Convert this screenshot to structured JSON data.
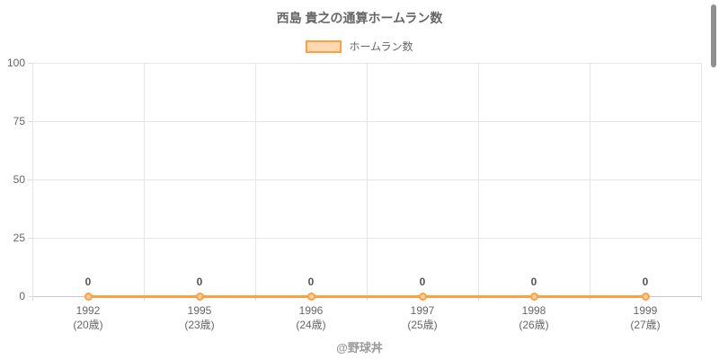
{
  "chart": {
    "title": "西島 貴之の通算ホームラン数",
    "legend": {
      "label": "ホームラン数"
    },
    "footer": "@野球丼",
    "colors": {
      "line": "#ff9f40",
      "point_fill": "#ffcf9f",
      "legend_fill": "#ffd9b2",
      "grid": "#e6e6e6",
      "axis": "#c9c9c9",
      "title_text": "#666666",
      "tick_text": "#666666",
      "data_label_text": "#555555",
      "footer_text": "#999999",
      "scrollbar": "#8f8f8f"
    }
  },
  "chart_data": {
    "type": "line",
    "title": "西島 貴之の通算ホームラン数",
    "categories": [
      "1992",
      "1995",
      "1996",
      "1997",
      "1998",
      "1999"
    ],
    "category_sublabels": [
      "(20歳)",
      "(23歳)",
      "(24歳)",
      "(25歳)",
      "(26歳)",
      "(27歳)"
    ],
    "series": [
      {
        "name": "ホームラン数",
        "values": [
          0,
          0,
          0,
          0,
          0,
          0
        ]
      }
    ],
    "data_labels": [
      "0",
      "0",
      "0",
      "0",
      "0",
      "0"
    ],
    "xlabel": "",
    "ylabel": "",
    "ylim": [
      0,
      100
    ],
    "yticks": [
      0,
      25,
      50,
      75,
      100
    ],
    "grid": true,
    "legend_position": "top"
  }
}
